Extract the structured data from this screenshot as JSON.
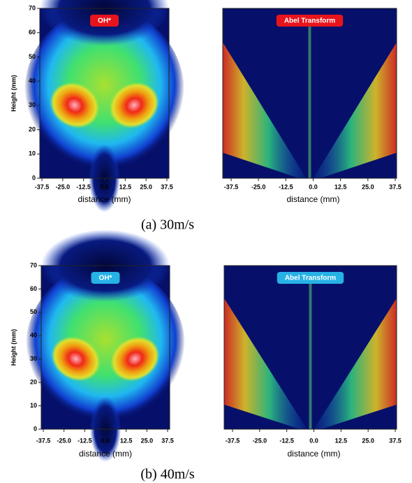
{
  "figures": [
    {
      "caption": "(a)  30m/s",
      "label_color": "#e8141c",
      "plots": [
        {
          "label": "OH*",
          "xlabel": "distance (mm)",
          "ylabel": "Height (mm)",
          "xlim": [
            -37.5,
            37.5
          ],
          "xticks": [
            -37.5,
            {
              "value": -25,
              "label": "-25.0"
            },
            -12.5,
            {
              "value": 0,
              "label": "0.0"
            },
            12.5,
            {
              "value": 25,
              "label": "25.0"
            },
            37.5
          ],
          "ylim": [
            0,
            70
          ],
          "yticks": [
            0,
            10,
            20,
            30,
            40,
            50,
            60,
            70
          ]
        },
        {
          "label": "Abel Transform",
          "xlabel": "distance (mm)",
          "xlim": [
            -37.5,
            37.5
          ],
          "xticks": [
            -37.5,
            {
              "value": -25,
              "label": "-25.0"
            },
            -12.5,
            {
              "value": 0,
              "label": "0.0"
            },
            12.5,
            {
              "value": 25,
              "label": "25.0"
            },
            37.5
          ]
        }
      ]
    },
    {
      "caption": "(b)  40m/s",
      "label_color": "#27b2e6",
      "plots": [
        {
          "label": "OH*",
          "xlabel": "distance (mm)",
          "ylabel": "Height (mm)",
          "xlim": [
            -37.5,
            37.5
          ],
          "xticks": [
            -37.5,
            {
              "value": -25,
              "label": "-25.0"
            },
            -12.5,
            {
              "value": 0,
              "label": "0.0"
            },
            12.5,
            {
              "value": 25,
              "label": "25.0"
            },
            37.5
          ],
          "ylim": [
            0,
            70
          ],
          "yticks": [
            0,
            10,
            20,
            30,
            40,
            50,
            60,
            70
          ]
        },
        {
          "label": "Abel Transform",
          "xlabel": "distance (mm)",
          "xlim": [
            -37.5,
            37.5
          ],
          "xticks": [
            -37.5,
            {
              "value": -25,
              "label": "-25.0"
            },
            -12.5,
            {
              "value": 0,
              "label": "0.0"
            },
            12.5,
            {
              "value": 25,
              "label": "25.0"
            },
            37.5
          ]
        }
      ]
    }
  ]
}
